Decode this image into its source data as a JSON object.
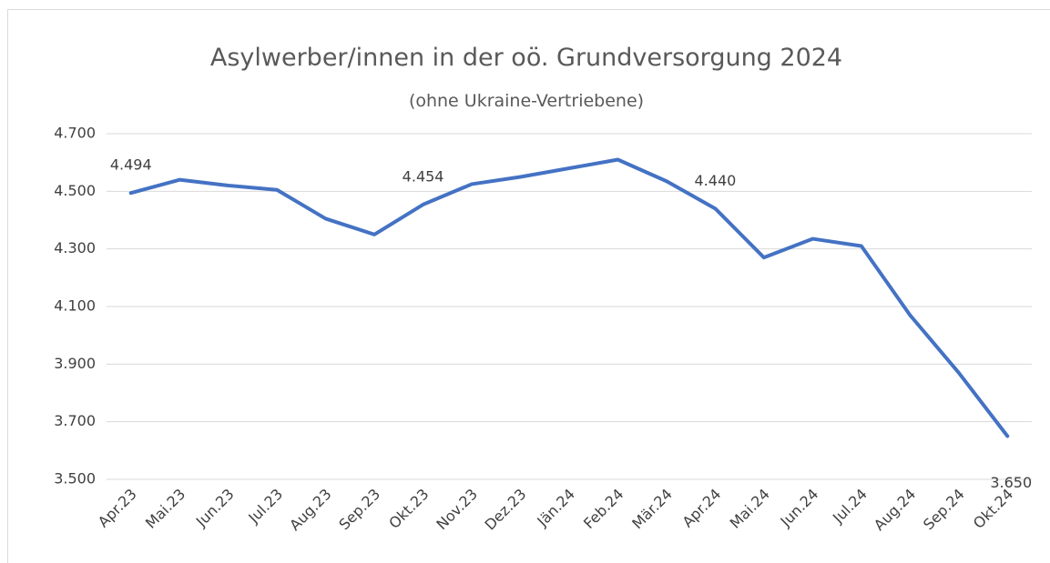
{
  "chart_data": {
    "type": "line",
    "title": "Asylwerber/innen in der oö. Grundversorgung 2024",
    "title_note": "(ohne Ukraine-Vertriebene)",
    "categories": [
      "Apr.23",
      "Mai.23",
      "Jun.23",
      "Jul.23",
      "Aug.23",
      "Sep.23",
      "Okt.23",
      "Nov.23",
      "Dez.23",
      "Jän.24",
      "Feb.24",
      "Mär.24",
      "Apr.24",
      "Mai.24",
      "Jun.24",
      "Jul.24",
      "Aug.24",
      "Sep.24",
      "Okt.24"
    ],
    "series": [
      {
        "name": "Asylwerber/innen",
        "color": "#4472c4",
        "values": [
          4494,
          4540,
          4520,
          4505,
          4405,
          4350,
          4454,
          4525,
          4550,
          4580,
          4610,
          4535,
          4440,
          4270,
          4335,
          4310,
          4070,
          3870,
          3650
        ],
        "value_labels": [
          "4.494",
          null,
          null,
          null,
          null,
          null,
          "4.454",
          null,
          null,
          null,
          null,
          null,
          "4.440",
          null,
          null,
          null,
          null,
          null,
          "3.650"
        ]
      }
    ],
    "ylim": [
      3500,
      4700
    ],
    "yticks": [
      {
        "value": 3500,
        "label": "3.500"
      },
      {
        "value": 3700,
        "label": "3.700"
      },
      {
        "value": 3900,
        "label": "3.900"
      },
      {
        "value": 4100,
        "label": "4.100"
      },
      {
        "value": 4300,
        "label": "4.300"
      },
      {
        "value": 4500,
        "label": "4.500"
      },
      {
        "value": 4700,
        "label": "4.700"
      }
    ],
    "grid": true
  }
}
